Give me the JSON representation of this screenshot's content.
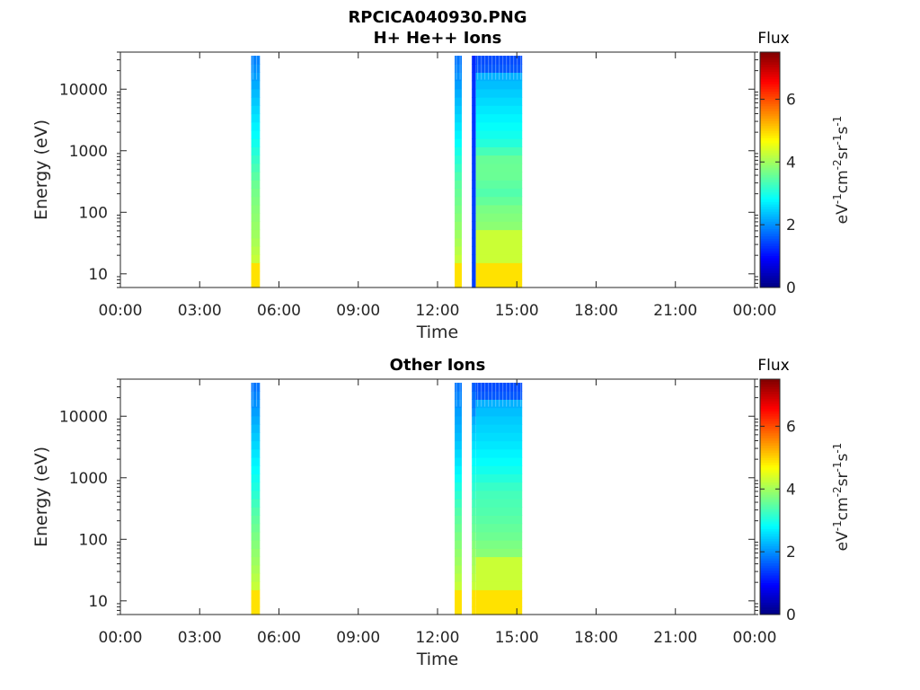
{
  "figure": {
    "title": "RPCICA040930.PNG"
  },
  "chart_data": [
    {
      "type": "heatmap",
      "title": "H+ He++ Ions",
      "xlabel": "Time",
      "ylabel": "Energy (eV)",
      "x_ticks": [
        "00:00",
        "03:00",
        "06:00",
        "09:00",
        "12:00",
        "15:00",
        "18:00",
        "21:00",
        "00:00"
      ],
      "xlim_hours": [
        0,
        24
      ],
      "y_scale": "log",
      "ylim": [
        6,
        40000
      ],
      "y_ticks": [
        {
          "value": 10,
          "label": "10"
        },
        {
          "value": 100,
          "label": "100"
        },
        {
          "value": 1000,
          "label": "1000"
        },
        {
          "value": 10000,
          "label": "10000"
        }
      ],
      "colorbar": {
        "title": "Flux",
        "label": "eV-1cm-2sr-1s-1",
        "range": [
          0,
          7.5
        ],
        "ticks": [
          {
            "value": 0,
            "label": "0"
          },
          {
            "value": 2,
            "label": "2"
          },
          {
            "value": 4,
            "label": "4"
          },
          {
            "value": 6,
            "label": "6"
          }
        ],
        "colormap": "jet"
      },
      "data_blocks": [
        {
          "start_hour": 4.95,
          "end_hour": 5.28,
          "max_energy": 35000,
          "profile": [
            [
              6,
              4.9
            ],
            [
              15,
              4.9
            ],
            [
              16,
              4.3
            ],
            [
              40,
              4.0
            ],
            [
              120,
              3.8
            ],
            [
              300,
              3.6
            ],
            [
              600,
              3.3
            ],
            [
              1500,
              2.9
            ],
            [
              5000,
              2.5
            ],
            [
              12000,
              2.2
            ],
            [
              30000,
              1.9
            ],
            [
              40000,
              1.7
            ]
          ]
        },
        {
          "start_hour": 12.65,
          "end_hour": 12.92,
          "max_energy": 35000,
          "profile": [
            [
              6,
              4.9
            ],
            [
              15,
              4.9
            ],
            [
              16,
              4.3
            ],
            [
              40,
              4.0
            ],
            [
              120,
              3.7
            ],
            [
              300,
              3.5
            ],
            [
              600,
              3.2
            ],
            [
              1500,
              2.8
            ],
            [
              5000,
              2.4
            ],
            [
              12000,
              2.1
            ],
            [
              30000,
              1.8
            ],
            [
              40000,
              1.6
            ]
          ]
        },
        {
          "start_hour": 13.3,
          "end_hour": 13.45,
          "max_energy": 35000,
          "profile": [
            [
              6,
              1.4
            ],
            [
              100,
              1.4
            ],
            [
              10000,
              1.3
            ],
            [
              40000,
              1.2
            ]
          ]
        },
        {
          "start_hour": 13.45,
          "end_hour": 15.2,
          "max_energy": 35000,
          "profile": [
            [
              6,
              4.9
            ],
            [
              15,
              4.9
            ],
            [
              16,
              4.3
            ],
            [
              45,
              4.3
            ],
            [
              46,
              3.9
            ],
            [
              120,
              3.7
            ],
            [
              200,
              3.4
            ],
            [
              400,
              3.6
            ],
            [
              700,
              3.6
            ],
            [
              1500,
              3.0
            ],
            [
              4000,
              2.7
            ],
            [
              10000,
              2.4
            ],
            [
              18000,
              2.2
            ],
            [
              20000,
              1.6
            ],
            [
              40000,
              1.4
            ]
          ]
        }
      ]
    },
    {
      "type": "heatmap",
      "title": "Other Ions",
      "xlabel": "Time",
      "ylabel": "Energy (eV)",
      "x_ticks": [
        "00:00",
        "03:00",
        "06:00",
        "09:00",
        "12:00",
        "15:00",
        "18:00",
        "21:00",
        "00:00"
      ],
      "xlim_hours": [
        0,
        24
      ],
      "y_scale": "log",
      "ylim": [
        6,
        40000
      ],
      "y_ticks": [
        {
          "value": 10,
          "label": "10"
        },
        {
          "value": 100,
          "label": "100"
        },
        {
          "value": 1000,
          "label": "1000"
        },
        {
          "value": 10000,
          "label": "10000"
        }
      ],
      "colorbar": {
        "title": "Flux",
        "label": "eV-1cm-2sr-1s-1",
        "range": [
          0,
          7.5
        ],
        "ticks": [
          {
            "value": 0,
            "label": "0"
          },
          {
            "value": 2,
            "label": "2"
          },
          {
            "value": 4,
            "label": "4"
          },
          {
            "value": 6,
            "label": "6"
          }
        ],
        "colormap": "jet"
      },
      "data_blocks": [
        {
          "start_hour": 4.95,
          "end_hour": 5.28,
          "max_energy": 35000,
          "profile": [
            [
              6,
              4.9
            ],
            [
              15,
              4.9
            ],
            [
              16,
              4.3
            ],
            [
              40,
              4.0
            ],
            [
              120,
              3.7
            ],
            [
              300,
              3.4
            ],
            [
              600,
              3.1
            ],
            [
              1500,
              2.8
            ],
            [
              5000,
              2.4
            ],
            [
              12000,
              2.1
            ],
            [
              30000,
              1.8
            ],
            [
              40000,
              1.6
            ]
          ]
        },
        {
          "start_hour": 12.65,
          "end_hour": 12.92,
          "max_energy": 35000,
          "profile": [
            [
              6,
              4.9
            ],
            [
              15,
              4.9
            ],
            [
              16,
              4.3
            ],
            [
              40,
              4.0
            ],
            [
              120,
              3.7
            ],
            [
              300,
              3.4
            ],
            [
              600,
              3.1
            ],
            [
              1500,
              2.7
            ],
            [
              5000,
              2.3
            ],
            [
              12000,
              2.1
            ],
            [
              30000,
              1.8
            ],
            [
              40000,
              1.6
            ]
          ]
        },
        {
          "start_hour": 13.3,
          "end_hour": 13.45,
          "max_energy": 35000,
          "profile": [
            [
              6,
              4.9
            ],
            [
              15,
              4.9
            ],
            [
              16,
              4.3
            ],
            [
              45,
              4.0
            ],
            [
              150,
              3.6
            ],
            [
              600,
              3.2
            ],
            [
              2000,
              2.8
            ],
            [
              8000,
              2.3
            ],
            [
              11000,
              2.0
            ],
            [
              40000,
              1.5
            ]
          ]
        },
        {
          "start_hour": 13.45,
          "end_hour": 15.2,
          "max_energy": 35000,
          "profile": [
            [
              6,
              4.9
            ],
            [
              15,
              4.9
            ],
            [
              16,
              4.3
            ],
            [
              45,
              4.3
            ],
            [
              46,
              3.9
            ],
            [
              120,
              3.6
            ],
            [
              300,
              3.4
            ],
            [
              600,
              3.3
            ],
            [
              1500,
              2.9
            ],
            [
              4000,
              2.6
            ],
            [
              10000,
              2.4
            ],
            [
              18000,
              2.2
            ],
            [
              20000,
              1.6
            ],
            [
              40000,
              1.4
            ]
          ]
        }
      ]
    }
  ]
}
